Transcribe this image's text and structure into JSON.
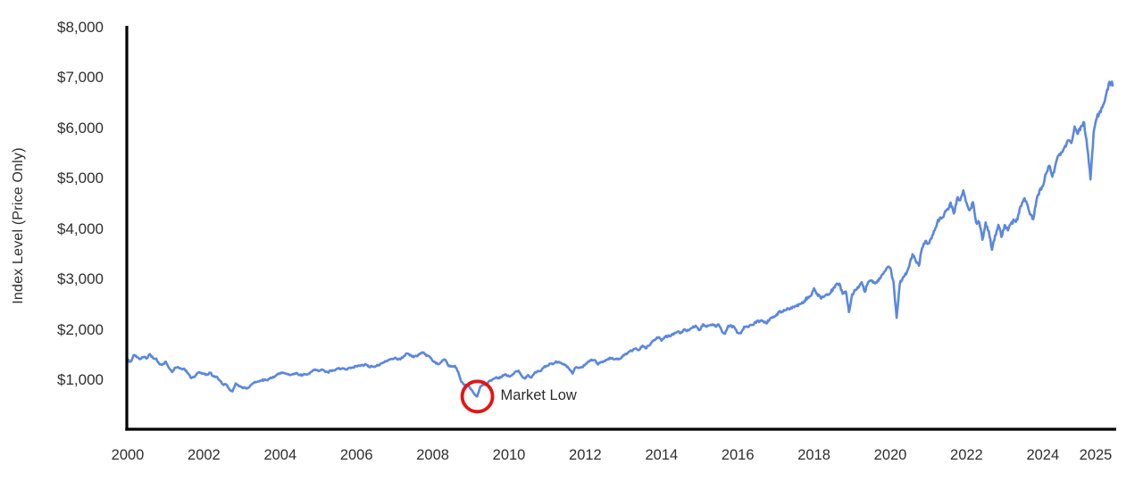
{
  "colors": {
    "line": "#5b87e0",
    "annotation_circle": "#e51414",
    "axis": "#000000",
    "text": "#2f2f2f",
    "background": "#ffffff"
  },
  "chart_data": {
    "type": "line",
    "title": "",
    "xlabel": "",
    "ylabel": "Index Level (Price Only)",
    "grid": false,
    "legend": "none",
    "ylim": [
      0,
      8000
    ],
    "xlim": [
      2000,
      2025.92
    ],
    "interval": "monthly",
    "x_start_year": 2000,
    "values": [
      1394,
      1366,
      1499,
      1452,
      1421,
      1455,
      1431,
      1518,
      1436,
      1429,
      1315,
      1320,
      1366,
      1240,
      1160,
      1249,
      1256,
      1224,
      1211,
      1134,
      1041,
      1060,
      1139,
      1148,
      1130,
      1107,
      1147,
      1077,
      1067,
      990,
      912,
      916,
      815,
      777,
      936,
      880,
      856,
      841,
      848,
      917,
      964,
      975,
      990,
      1008,
      996,
      1051,
      1058,
      1112,
      1131,
      1145,
      1126,
      1107,
      1121,
      1141,
      1102,
      1104,
      1115,
      1130,
      1174,
      1212,
      1181,
      1204,
      1181,
      1157,
      1192,
      1191,
      1234,
      1220,
      1229,
      1207,
      1249,
      1248,
      1280,
      1281,
      1295,
      1311,
      1270,
      1270,
      1277,
      1304,
      1336,
      1378,
      1401,
      1418,
      1438,
      1407,
      1421,
      1482,
      1531,
      1503,
      1455,
      1474,
      1527,
      1549,
      1481,
      1468,
      1379,
      1331,
      1323,
      1386,
      1400,
      1280,
      1267,
      1283,
      1166,
      969,
      896,
      903,
      826,
      735,
      677,
      873,
      919,
      919,
      987,
      1021,
      1057,
      1036,
      1096,
      1115,
      1074,
      1104,
      1169,
      1187,
      1089,
      1031,
      1102,
      1049,
      1141,
      1183,
      1181,
      1258,
      1286,
      1327,
      1326,
      1364,
      1345,
      1321,
      1292,
      1219,
      1131,
      1253,
      1247,
      1258,
      1312,
      1366,
      1408,
      1398,
      1310,
      1362,
      1379,
      1407,
      1441,
      1412,
      1416,
      1426,
      1498,
      1515,
      1569,
      1598,
      1631,
      1606,
      1686,
      1633,
      1682,
      1757,
      1806,
      1848,
      1783,
      1859,
      1872,
      1884,
      1924,
      1960,
      1931,
      2003,
      1972,
      2018,
      2068,
      2059,
      1995,
      2105,
      2068,
      2086,
      2107,
      2063,
      2104,
      1972,
      1920,
      2079,
      2080,
      2044,
      1940,
      1932,
      2060,
      2065,
      2097,
      2099,
      2174,
      2171,
      2168,
      2126,
      2199,
      2239,
      2279,
      2364,
      2363,
      2384,
      2412,
      2423,
      2470,
      2472,
      2519,
      2575,
      2648,
      2674,
      2824,
      2714,
      2641,
      2648,
      2705,
      2718,
      2816,
      2902,
      2914,
      2712,
      2760,
      2351,
      2704,
      2785,
      2834,
      2946,
      2752,
      2942,
      2980,
      2926,
      2977,
      3038,
      3141,
      3231,
      3226,
      2954,
      2237,
      2912,
      3044,
      3100,
      3271,
      3500,
      3363,
      3270,
      3622,
      3756,
      3714,
      3811,
      3973,
      4181,
      4204,
      4298,
      4395,
      4523,
      4308,
      4605,
      4567,
      4766,
      4516,
      4374,
      4530,
      4132,
      4132,
      3785,
      4130,
      3955,
      3586,
      3872,
      4080,
      3840,
      4077,
      3970,
      4109,
      4169,
      4180,
      4450,
      4589,
      4508,
      4288,
      4194,
      4568,
      4770,
      4846,
      5096,
      5254,
      5036,
      5278,
      5460,
      5522,
      5648,
      5762,
      5705,
      6032,
      5882,
      6041,
      6115,
      5612,
      4983,
      5912,
      6205,
      6339,
      6460,
      6688,
      6920,
      6846
    ],
    "y_ticks": [
      {
        "label": "$1,000",
        "value": 1000
      },
      {
        "label": "$2,000",
        "value": 2000
      },
      {
        "label": "$3,000",
        "value": 3000
      },
      {
        "label": "$4,000",
        "value": 4000
      },
      {
        "label": "$5,000",
        "value": 5000
      },
      {
        "label": "$6,000",
        "value": 6000
      },
      {
        "label": "$7,000",
        "value": 7000
      },
      {
        "label": "$8,000",
        "value": 8000
      }
    ],
    "x_ticks": [
      {
        "label": "2000",
        "year": 2000
      },
      {
        "label": "2002",
        "year": 2002
      },
      {
        "label": "2004",
        "year": 2004
      },
      {
        "label": "2006",
        "year": 2006
      },
      {
        "label": "2008",
        "year": 2008
      },
      {
        "label": "2010",
        "year": 2010
      },
      {
        "label": "2012",
        "year": 2012
      },
      {
        "label": "2014",
        "year": 2014
      },
      {
        "label": "2016",
        "year": 2016
      },
      {
        "label": "2018",
        "year": 2018
      },
      {
        "label": "2020",
        "year": 2020
      },
      {
        "label": "2022",
        "year": 2022
      },
      {
        "label": "2024",
        "year": 2024
      },
      {
        "label": "2025",
        "year": 2025,
        "end_aligned": true
      }
    ],
    "annotation": {
      "label": "Market Low",
      "t": 2009.17,
      "value": 677
    }
  }
}
